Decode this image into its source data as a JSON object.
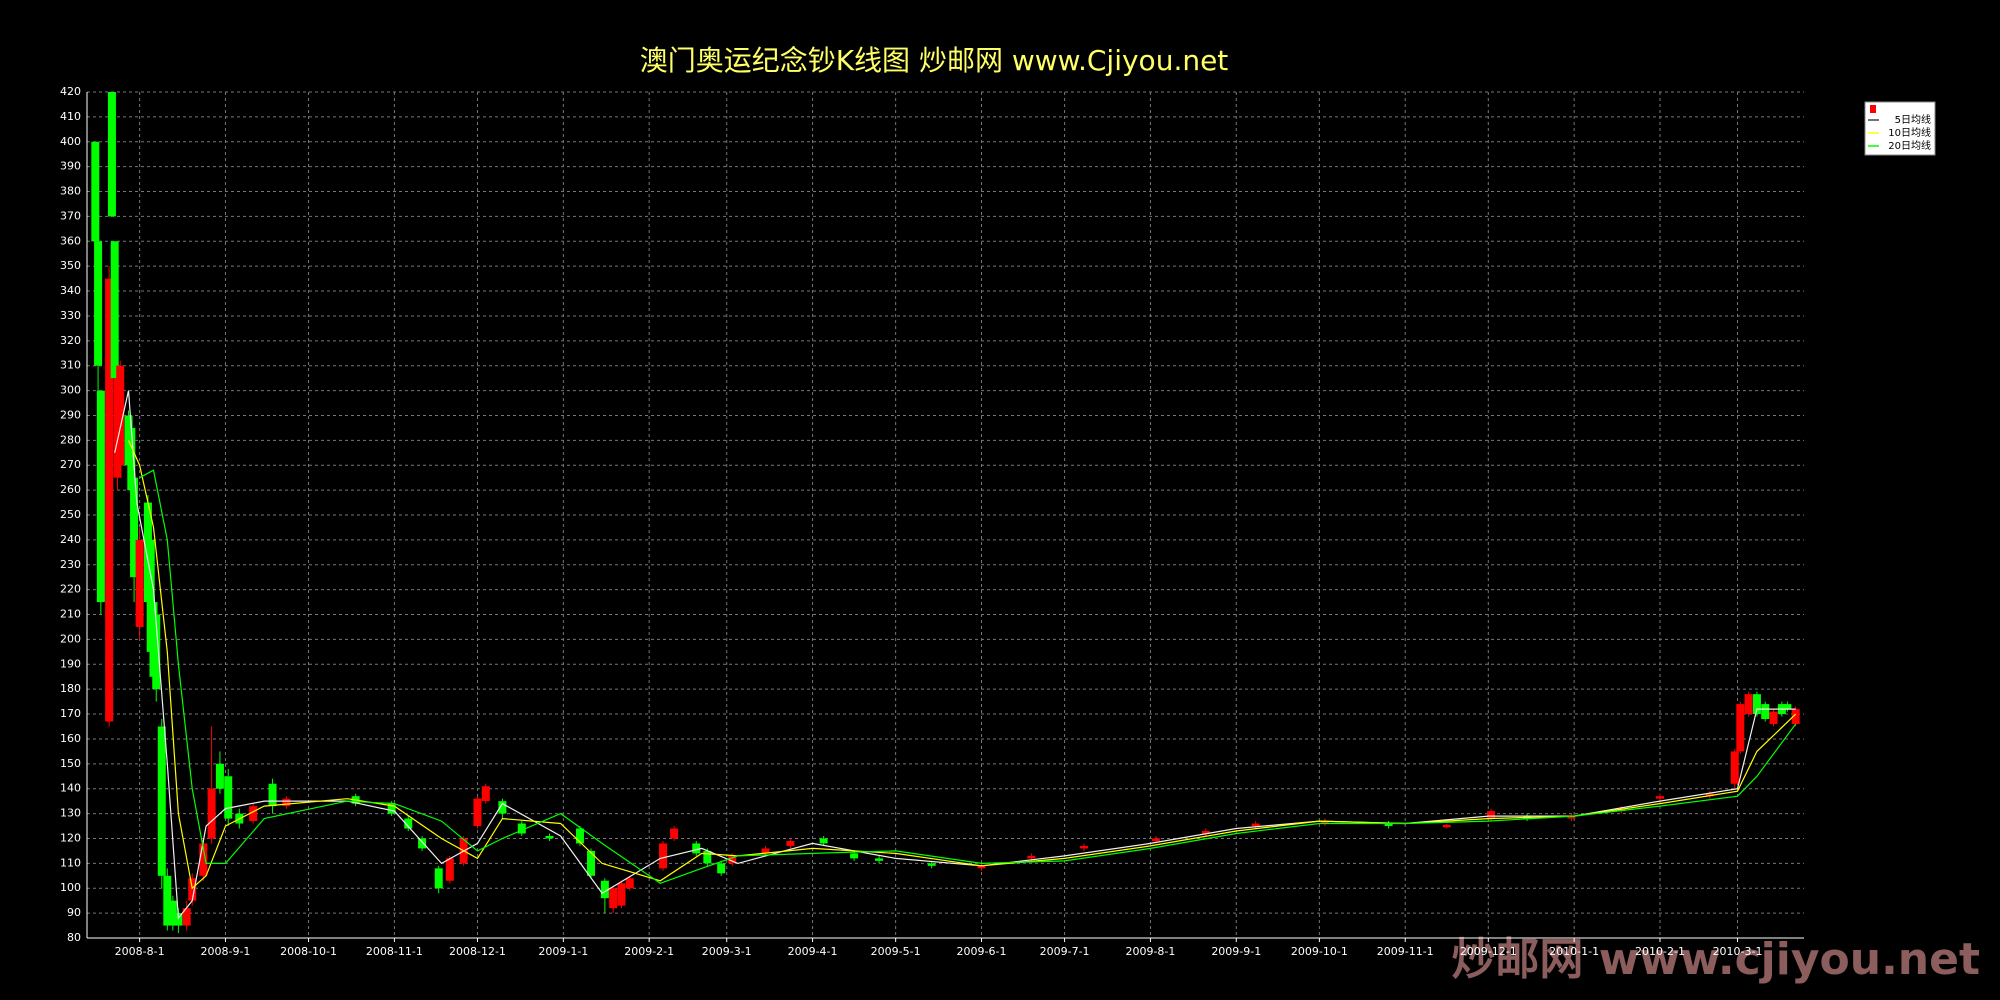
{
  "chart_data": {
    "type": "candlestick",
    "title": "澳门奥运纪念钞K线图  炒邮网 www.Cjiyou.net",
    "watermark": "炒邮网 www.cjiyou.net",
    "up_color": "#ff0000",
    "down_color": "#00ff00",
    "grid": true,
    "legend": "top-right",
    "ylim": [
      80,
      420
    ],
    "yticks": [
      80,
      90,
      100,
      110,
      120,
      130,
      140,
      150,
      160,
      170,
      180,
      190,
      200,
      210,
      220,
      230,
      240,
      250,
      260,
      270,
      280,
      290,
      300,
      310,
      320,
      330,
      340,
      350,
      360,
      370,
      380,
      390,
      400,
      410,
      420
    ],
    "xlim": [
      "2008-7-13",
      "2010-3-25"
    ],
    "xticks": [
      "2008-8-1",
      "2008-9-1",
      "2008-10-1",
      "2008-11-1",
      "2008-12-1",
      "2009-1-1",
      "2009-2-1",
      "2009-3-1",
      "2009-4-1",
      "2009-5-1",
      "2009-6-1",
      "2009-7-1",
      "2009-8-1",
      "2009-9-1",
      "2009-10-1",
      "2009-11-1",
      "2009-12-1",
      "2010-1-1",
      "2010-2-1",
      "2010-3-1"
    ],
    "candles": [
      {
        "date": "2008-7-16",
        "open": 400,
        "high": 400,
        "low": 360,
        "close": 360
      },
      {
        "date": "2008-7-17",
        "open": 360,
        "high": 360,
        "low": 300,
        "close": 310
      },
      {
        "date": "2008-7-18",
        "open": 300,
        "high": 300,
        "low": 210,
        "close": 215
      },
      {
        "date": "2008-7-21",
        "open": 167,
        "high": 350,
        "low": 165,
        "close": 345
      },
      {
        "date": "2008-7-22",
        "open": 420,
        "high": 420,
        "low": 370,
        "close": 370
      },
      {
        "date": "2008-7-23",
        "open": 360,
        "high": 360,
        "low": 300,
        "close": 305
      },
      {
        "date": "2008-7-24",
        "open": 265,
        "high": 310,
        "low": 260,
        "close": 305
      },
      {
        "date": "2008-7-25",
        "open": 270,
        "high": 312,
        "low": 265,
        "close": 310
      },
      {
        "date": "2008-7-28",
        "open": 290,
        "high": 292,
        "low": 265,
        "close": 270
      },
      {
        "date": "2008-7-29",
        "open": 285,
        "high": 288,
        "low": 255,
        "close": 260
      },
      {
        "date": "2008-7-30",
        "open": 265,
        "high": 268,
        "low": 215,
        "close": 225
      },
      {
        "date": "2008-8-1",
        "open": 205,
        "high": 245,
        "low": 200,
        "close": 240
      },
      {
        "date": "2008-8-4",
        "open": 255,
        "high": 258,
        "low": 210,
        "close": 215
      },
      {
        "date": "2008-8-5",
        "open": 240,
        "high": 245,
        "low": 185,
        "close": 195
      },
      {
        "date": "2008-8-6",
        "open": 215,
        "high": 218,
        "low": 180,
        "close": 185
      },
      {
        "date": "2008-8-7",
        "open": 210,
        "high": 212,
        "low": 175,
        "close": 180
      },
      {
        "date": "2008-8-9",
        "open": 165,
        "high": 168,
        "low": 100,
        "close": 105
      },
      {
        "date": "2008-8-11",
        "open": 105,
        "high": 108,
        "low": 83,
        "close": 85
      },
      {
        "date": "2008-8-13",
        "open": 95,
        "high": 97,
        "low": 83,
        "close": 85
      },
      {
        "date": "2008-8-15",
        "open": 90,
        "high": 92,
        "low": 82,
        "close": 85
      },
      {
        "date": "2008-8-18",
        "open": 85,
        "high": 95,
        "low": 83,
        "close": 92
      },
      {
        "date": "2008-8-20",
        "open": 95,
        "high": 106,
        "low": 93,
        "close": 104
      },
      {
        "date": "2008-8-24",
        "open": 105,
        "high": 120,
        "low": 103,
        "close": 118
      },
      {
        "date": "2008-8-27",
        "open": 120,
        "high": 165,
        "low": 118,
        "close": 140
      },
      {
        "date": "2008-8-30",
        "open": 150,
        "high": 155,
        "low": 138,
        "close": 140
      },
      {
        "date": "2008-9-2",
        "open": 145,
        "high": 148,
        "low": 125,
        "close": 128
      },
      {
        "date": "2008-9-6",
        "open": 130,
        "high": 132,
        "low": 124,
        "close": 126
      },
      {
        "date": "2008-9-11",
        "open": 127,
        "high": 134,
        "low": 126,
        "close": 133
      },
      {
        "date": "2008-9-18",
        "open": 142,
        "high": 144,
        "low": 130,
        "close": 133
      },
      {
        "date": "2008-9-23",
        "open": 133,
        "high": 137,
        "low": 132,
        "close": 136
      },
      {
        "date": "2008-10-18",
        "open": 137,
        "high": 138,
        "low": 133,
        "close": 134
      },
      {
        "date": "2008-10-31",
        "open": 134,
        "high": 135,
        "low": 129,
        "close": 130
      },
      {
        "date": "2008-11-6",
        "open": 128,
        "high": 129,
        "low": 123,
        "close": 124
      },
      {
        "date": "2008-11-11",
        "open": 120,
        "high": 121,
        "low": 115,
        "close": 116
      },
      {
        "date": "2008-11-17",
        "open": 108,
        "high": 109,
        "low": 98,
        "close": 100
      },
      {
        "date": "2008-11-21",
        "open": 103,
        "high": 113,
        "low": 102,
        "close": 112
      },
      {
        "date": "2008-11-26",
        "open": 110,
        "high": 121,
        "low": 109,
        "close": 120
      },
      {
        "date": "2008-12-1",
        "open": 125,
        "high": 137,
        "low": 124,
        "close": 136
      },
      {
        "date": "2008-12-4",
        "open": 135,
        "high": 142,
        "low": 134,
        "close": 141
      },
      {
        "date": "2008-12-10",
        "open": 135,
        "high": 136,
        "low": 128,
        "close": 130
      },
      {
        "date": "2008-12-17",
        "open": 126,
        "high": 127,
        "low": 121,
        "close": 122
      },
      {
        "date": "2008-12-27",
        "open": 121,
        "high": 122,
        "low": 119,
        "close": 120
      },
      {
        "date": "2009-1-7",
        "open": 124,
        "high": 125,
        "low": 117,
        "close": 118
      },
      {
        "date": "2009-1-11",
        "open": 115,
        "high": 116,
        "low": 104,
        "close": 105
      },
      {
        "date": "2009-1-16",
        "open": 103,
        "high": 104,
        "low": 90,
        "close": 96
      },
      {
        "date": "2009-1-19",
        "open": 92,
        "high": 101,
        "low": 90,
        "close": 100
      },
      {
        "date": "2009-1-22",
        "open": 93,
        "high": 103,
        "low": 92,
        "close": 102
      },
      {
        "date": "2009-1-25",
        "open": 100,
        "high": 105,
        "low": 99,
        "close": 104
      },
      {
        "date": "2009-2-6",
        "open": 108,
        "high": 119,
        "low": 107,
        "close": 118
      },
      {
        "date": "2009-2-10",
        "open": 120,
        "high": 125,
        "low": 119,
        "close": 124
      },
      {
        "date": "2009-2-18",
        "open": 118,
        "high": 119,
        "low": 113,
        "close": 114
      },
      {
        "date": "2009-2-22",
        "open": 115,
        "high": 116,
        "low": 109,
        "close": 110
      },
      {
        "date": "2009-2-27",
        "open": 110,
        "high": 111,
        "low": 105,
        "close": 106
      },
      {
        "date": "2009-3-3",
        "open": 110,
        "high": 114,
        "low": 109,
        "close": 113
      },
      {
        "date": "2009-3-15",
        "open": 114,
        "high": 117,
        "low": 113,
        "close": 116
      },
      {
        "date": "2009-3-24",
        "open": 117,
        "high": 120,
        "low": 116,
        "close": 119
      },
      {
        "date": "2009-4-5",
        "open": 120,
        "high": 121,
        "low": 117,
        "close": 118
      },
      {
        "date": "2009-4-16",
        "open": 114,
        "high": 115,
        "low": 111,
        "close": 112
      },
      {
        "date": "2009-4-25",
        "open": 112,
        "high": 113,
        "low": 110,
        "close": 111
      },
      {
        "date": "2009-5-14",
        "open": 110,
        "high": 111,
        "low": 108,
        "close": 109
      },
      {
        "date": "2009-6-1",
        "open": 108,
        "high": 110,
        "low": 107,
        "close": 109
      },
      {
        "date": "2009-6-19",
        "open": 112,
        "high": 114,
        "low": 111,
        "close": 113
      },
      {
        "date": "2009-7-8",
        "open": 116,
        "high": 118,
        "low": 115,
        "close": 117
      },
      {
        "date": "2009-8-3",
        "open": 119,
        "high": 121,
        "low": 118,
        "close": 120
      },
      {
        "date": "2009-8-21",
        "open": 122,
        "high": 124,
        "low": 121,
        "close": 123
      },
      {
        "date": "2009-9-8",
        "open": 125,
        "high": 127,
        "low": 124,
        "close": 126
      },
      {
        "date": "2009-10-3",
        "open": 126,
        "high": 128,
        "low": 125,
        "close": 127
      },
      {
        "date": "2009-10-26",
        "open": 126,
        "high": 127,
        "low": 124,
        "close": 125
      },
      {
        "date": "2009-11-16",
        "open": 124.5,
        "high": 126,
        "low": 124,
        "close": 125.5
      },
      {
        "date": "2009-12-2",
        "open": 128,
        "high": 132,
        "low": 127,
        "close": 131
      },
      {
        "date": "2009-12-15",
        "open": 129,
        "high": 130,
        "low": 127,
        "close": 128
      },
      {
        "date": "2009-12-31",
        "open": 128,
        "high": 130,
        "low": 127,
        "close": 129
      },
      {
        "date": "2010-1-18",
        "open": 131,
        "high": 133,
        "low": 130,
        "close": 132
      },
      {
        "date": "2010-2-1",
        "open": 136,
        "high": 138,
        "low": 135,
        "close": 137
      },
      {
        "date": "2010-2-19",
        "open": 137,
        "high": 139,
        "low": 136,
        "close": 138
      },
      {
        "date": "2010-2-28",
        "open": 142,
        "high": 156,
        "low": 140,
        "close": 155
      },
      {
        "date": "2010-3-2",
        "open": 155,
        "high": 175,
        "low": 154,
        "close": 174
      },
      {
        "date": "2010-3-5",
        "open": 170,
        "high": 179,
        "low": 169,
        "close": 178
      },
      {
        "date": "2010-3-8",
        "open": 178,
        "high": 179,
        "low": 169,
        "close": 170
      },
      {
        "date": "2010-3-11",
        "open": 174,
        "high": 175,
        "low": 167,
        "close": 168
      },
      {
        "date": "2010-3-14",
        "open": 166,
        "high": 172,
        "low": 165,
        "close": 171
      },
      {
        "date": "2010-3-17",
        "open": 174,
        "high": 175,
        "low": 169,
        "close": 170
      },
      {
        "date": "2010-3-19",
        "open": 174,
        "high": 175,
        "low": 171,
        "close": 172
      },
      {
        "date": "2010-3-22",
        "open": 166,
        "high": 173,
        "low": 165,
        "close": 172
      }
    ],
    "series": [
      {
        "name": "5日均线",
        "color": "#f0f0f0",
        "x": [
          "2008-7-23",
          "2008-7-28",
          "2008-7-31",
          "2008-8-6",
          "2008-8-11",
          "2008-8-15",
          "2008-8-20",
          "2008-8-25",
          "2008-9-1",
          "2008-9-15",
          "2008-10-15",
          "2008-11-1",
          "2008-11-18",
          "2008-12-1",
          "2008-12-10",
          "2008-12-31",
          "2009-1-15",
          "2009-2-5",
          "2009-2-20",
          "2009-3-5",
          "2009-4-1",
          "2009-5-1",
          "2009-6-1",
          "2009-7-1",
          "2009-8-1",
          "2009-9-1",
          "2009-10-1",
          "2009-11-1",
          "2009-12-1",
          "2010-1-1",
          "2010-2-1",
          "2010-3-1",
          "2010-3-8",
          "2010-3-22"
        ],
        "values": [
          275,
          300,
          255,
          220,
          150,
          88,
          95,
          125,
          132,
          135,
          135,
          131,
          110,
          118,
          134,
          121,
          98,
          112,
          116,
          110,
          118,
          112,
          109,
          113,
          118,
          124,
          127,
          126,
          129,
          129,
          135,
          140,
          172,
          172
        ]
      },
      {
        "name": "10日均线",
        "color": "#ffff00",
        "x": [
          "2008-7-28",
          "2008-8-1",
          "2008-8-6",
          "2008-8-11",
          "2008-8-15",
          "2008-8-20",
          "2008-8-25",
          "2008-9-1",
          "2008-9-15",
          "2008-10-15",
          "2008-11-1",
          "2008-11-18",
          "2008-12-1",
          "2008-12-10",
          "2008-12-31",
          "2009-1-15",
          "2009-2-5",
          "2009-2-20",
          "2009-3-5",
          "2009-4-1",
          "2009-5-1",
          "2009-6-1",
          "2009-7-1",
          "2009-8-1",
          "2009-9-1",
          "2009-10-1",
          "2009-11-1",
          "2009-12-1",
          "2010-1-1",
          "2010-2-1",
          "2010-3-1",
          "2010-3-8",
          "2010-3-22"
        ],
        "values": [
          280,
          270,
          245,
          195,
          130,
          100,
          105,
          125,
          133,
          136,
          133,
          120,
          112,
          128,
          126,
          110,
          103,
          114,
          113,
          116,
          114,
          109,
          112,
          117,
          123,
          127,
          126,
          128,
          129,
          134,
          139,
          155,
          170
        ]
      },
      {
        "name": "20日均线",
        "color": "#00ff00",
        "x": [
          "2008-8-1",
          "2008-8-6",
          "2008-8-11",
          "2008-8-15",
          "2008-8-20",
          "2008-8-25",
          "2008-9-1",
          "2008-9-15",
          "2008-10-15",
          "2008-11-1",
          "2008-11-18",
          "2008-12-1",
          "2008-12-10",
          "2008-12-31",
          "2009-1-15",
          "2009-2-5",
          "2009-2-20",
          "2009-3-5",
          "2009-4-1",
          "2009-5-1",
          "2009-6-1",
          "2009-7-1",
          "2009-8-1",
          "2009-9-1",
          "2009-10-1",
          "2009-11-1",
          "2009-12-1",
          "2010-1-1",
          "2010-2-1",
          "2010-3-1",
          "2010-3-8",
          "2010-3-22"
        ],
        "values": [
          265,
          268,
          240,
          190,
          140,
          110,
          110,
          128,
          135,
          134,
          127,
          115,
          120,
          130,
          118,
          102,
          108,
          113,
          114,
          115,
          110,
          111,
          116,
          122,
          126,
          126,
          127,
          129,
          133,
          137,
          145,
          166
        ]
      }
    ]
  }
}
